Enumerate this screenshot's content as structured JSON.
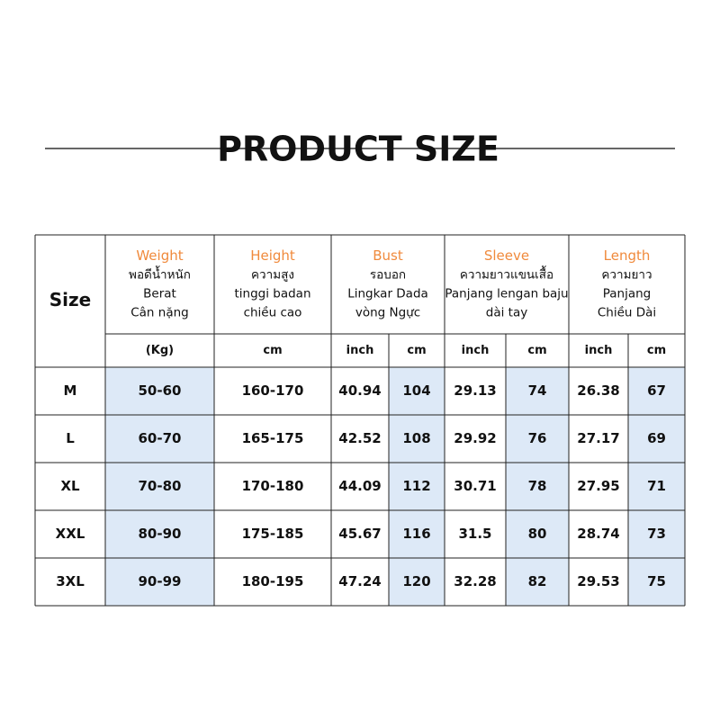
{
  "header": {
    "title": "PRODUCT SIZE"
  },
  "table": {
    "size_label": "Size",
    "columns": [
      {
        "name": "Weight",
        "lines": [
          "พอดีน้ำหนัก",
          "Berat",
          "Cân nặng"
        ],
        "units": [
          "(Kg)"
        ]
      },
      {
        "name": "Height",
        "lines": [
          "ความสูง",
          "tinggi badan",
          "chiều cao"
        ],
        "units": [
          "cm"
        ]
      },
      {
        "name": "Bust",
        "lines": [
          "รอบอก",
          "Lingkar Dada",
          "vòng Ngực"
        ],
        "units": [
          "inch",
          "cm"
        ]
      },
      {
        "name": "Sleeve",
        "lines": [
          "ความยาวแขนเสื้อ",
          "Panjang lengan baju",
          "dài tay"
        ],
        "units": [
          "inch",
          "cm"
        ]
      },
      {
        "name": "Length",
        "lines": [
          "ความยาว",
          "Panjang",
          "Chiều Dài"
        ],
        "units": [
          "inch",
          "cm"
        ]
      }
    ],
    "rows": [
      [
        "M",
        "50-60",
        "160-170",
        "40.94",
        "104",
        "29.13",
        "74",
        "26.38",
        "67"
      ],
      [
        "L",
        "60-70",
        "165-175",
        "42.52",
        "108",
        "29.92",
        "76",
        "27.17",
        "69"
      ],
      [
        "XL",
        "70-80",
        "170-180",
        "44.09",
        "112",
        "30.71",
        "78",
        "27.95",
        "71"
      ],
      [
        "XXL",
        "80-90",
        "175-185",
        "45.67",
        "116",
        "31.5",
        "80",
        "28.74",
        "73"
      ],
      [
        "3XL",
        "90-99",
        "180-195",
        "47.24",
        "120",
        "32.28",
        "82",
        "29.53",
        "75"
      ]
    ]
  }
}
